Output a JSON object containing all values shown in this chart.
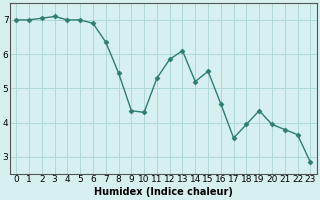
{
  "x": [
    0,
    1,
    2,
    3,
    4,
    5,
    6,
    7,
    8,
    9,
    10,
    11,
    12,
    13,
    14,
    15,
    16,
    17,
    18,
    19,
    20,
    21,
    22,
    23
  ],
  "y": [
    7.0,
    7.0,
    7.05,
    7.1,
    7.0,
    7.0,
    6.9,
    6.35,
    5.45,
    4.35,
    4.3,
    5.3,
    5.85,
    6.1,
    5.2,
    5.5,
    4.55,
    3.55,
    3.95,
    4.35,
    3.95,
    3.8,
    3.65,
    2.85
  ],
  "line_color": "#2e7d6e",
  "marker": "D",
  "markersize": 2.5,
  "linewidth": 1.0,
  "xlabel": "Humidex (Indice chaleur)",
  "background_color": "#d6f0f0",
  "grid_color": "#b0d8d8",
  "axis_color": "#555555",
  "xlim": [
    -0.5,
    23.5
  ],
  "ylim": [
    2.5,
    7.5
  ],
  "yticks": [
    3,
    4,
    5,
    6,
    7
  ],
  "xticks": [
    0,
    1,
    2,
    3,
    4,
    5,
    6,
    7,
    8,
    9,
    10,
    11,
    12,
    13,
    14,
    15,
    16,
    17,
    18,
    19,
    20,
    21,
    22,
    23
  ],
  "xlabel_fontsize": 7,
  "tick_fontsize": 6.5
}
